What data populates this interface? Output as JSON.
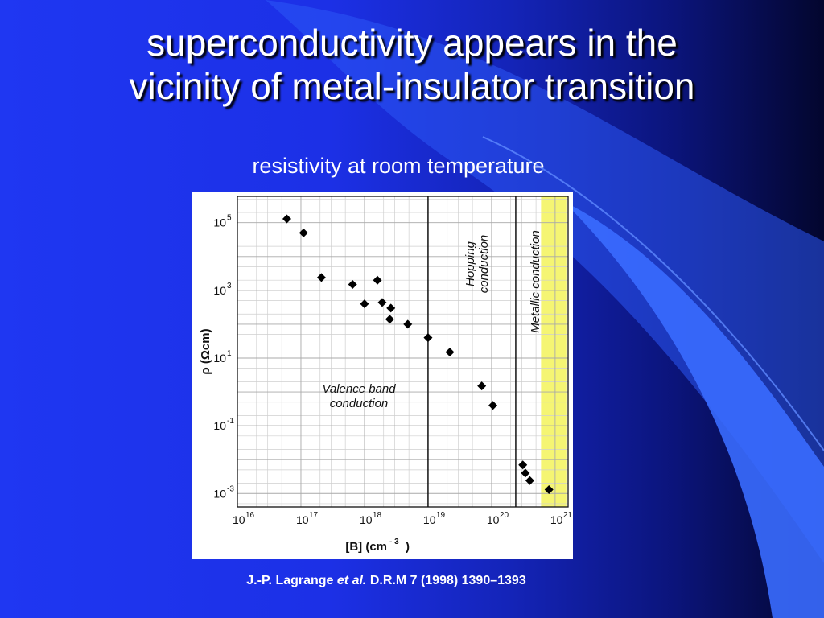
{
  "slide": {
    "title_line1": "superconductivity appears in the",
    "title_line2": "vicinity of metal-insulator transition",
    "subtitle": "resistivity at room temperature",
    "citation_authors": "J.-P. Lagrange ",
    "citation_etal": "et al.",
    "citation_ref": " D.R.M 7 (1998) 1390–1393"
  },
  "colors": {
    "background_left": "#1f37f2",
    "background_right": "#03062e",
    "highlight": "#f3f35a",
    "marker": "#000000"
  },
  "chart_data": {
    "type": "scatter",
    "x_scale": "log",
    "y_scale": "log",
    "xlim": [
      1e+16,
      1.6e+21
    ],
    "ylim": [
      0.0004,
      600000.0
    ],
    "xlabel_base": "[B]  (cm",
    "xlabel_exp": "- 3",
    "xlabel_close": ")",
    "ylabel": "ρ  (Ωcm)",
    "x_ticks": [
      {
        "value": 1e+16,
        "base": "10",
        "exp": "16"
      },
      {
        "value": 1e+17,
        "base": "10",
        "exp": "17"
      },
      {
        "value": 1e+18,
        "base": "10",
        "exp": "18"
      },
      {
        "value": 1e+19,
        "base": "10",
        "exp": "19"
      },
      {
        "value": 1e+20,
        "base": "10",
        "exp": "20"
      },
      {
        "value": 1e+21,
        "base": "10",
        "exp": "21"
      }
    ],
    "y_ticks": [
      {
        "value": 100000.0,
        "base": "10",
        "exp": "5"
      },
      {
        "value": 1000.0,
        "base": "10",
        "exp": "3"
      },
      {
        "value": 10.0,
        "base": "10",
        "exp": "1"
      },
      {
        "value": 0.1,
        "base": "10",
        "exp": "-1"
      },
      {
        "value": 0.001,
        "base": "10",
        "exp": "-3"
      }
    ],
    "grid": true,
    "region_boundaries": [
      1e+19,
      2.4e+20
    ],
    "metallic_band": [
      6e+20,
      1.5e+21
    ],
    "region_labels": {
      "valence_line1": "Valence band",
      "valence_line2": "conduction",
      "hopping_line1": "Hopping",
      "hopping_line2": "conduction",
      "metallic": "Metallic conduction"
    },
    "points": [
      {
        "x": 6e+16,
        "y": 130000
      },
      {
        "x": 1.1e+17,
        "y": 50000
      },
      {
        "x": 2.1e+17,
        "y": 2400
      },
      {
        "x": 6.5e+17,
        "y": 1500
      },
      {
        "x": 1e+18,
        "y": 400
      },
      {
        "x": 1.6e+18,
        "y": 2000
      },
      {
        "x": 1.9e+18,
        "y": 440
      },
      {
        "x": 2.5e+18,
        "y": 140
      },
      {
        "x": 2.6e+18,
        "y": 300
      },
      {
        "x": 4.8e+18,
        "y": 100
      },
      {
        "x": 1e+19,
        "y": 40
      },
      {
        "x": 2.2e+19,
        "y": 15
      },
      {
        "x": 7e+19,
        "y": 1.5
      },
      {
        "x": 1.05e+20,
        "y": 0.4
      },
      {
        "x": 3.1e+20,
        "y": 0.007
      },
      {
        "x": 3.4e+20,
        "y": 0.004
      },
      {
        "x": 4e+20,
        "y": 0.0024
      },
      {
        "x": 8e+20,
        "y": 0.0013
      }
    ]
  }
}
